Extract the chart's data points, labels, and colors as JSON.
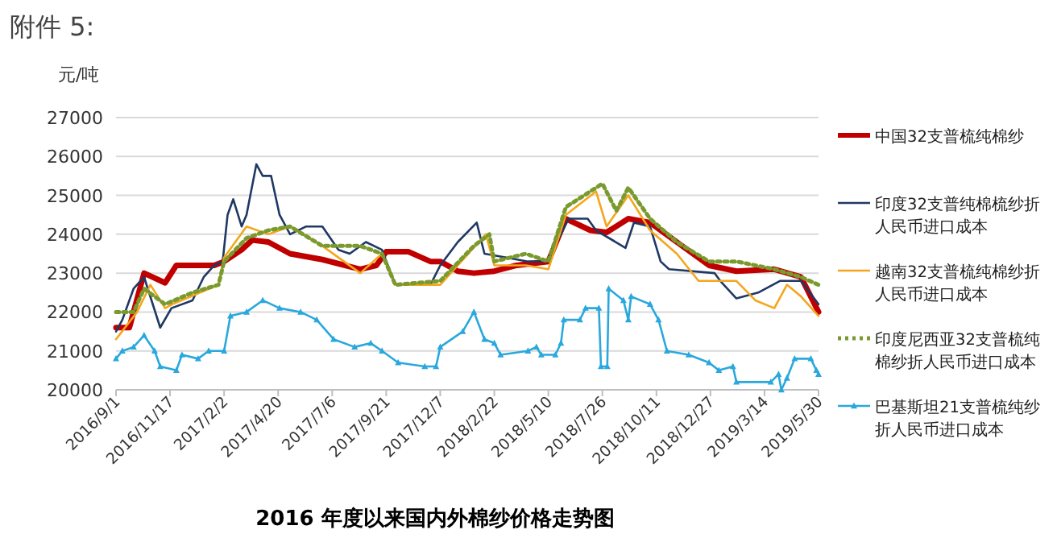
{
  "chart_data": {
    "type": "line",
    "title": "2016 年度以来国内外棉纱价格走势图",
    "ylabel": "元/吨",
    "annotations": [
      "附件 5:"
    ],
    "xlim": [
      "2016-09-01",
      "2019-05-30"
    ],
    "xticks": [
      {
        "value": "2016-09-01",
        "label": "2016/9/1"
      },
      {
        "value": "2016-11-17",
        "label": "2016/11/17"
      },
      {
        "value": "2017-02-02",
        "label": "2017/2/2"
      },
      {
        "value": "2017-04-20",
        "label": "2017/4/20"
      },
      {
        "value": "2017-07-06",
        "label": "2017/7/6"
      },
      {
        "value": "2017-09-21",
        "label": "2017/9/21"
      },
      {
        "value": "2017-12-07",
        "label": "2017/12/7"
      },
      {
        "value": "2018-02-22",
        "label": "2018/2/22"
      },
      {
        "value": "2018-05-10",
        "label": "2018/5/10"
      },
      {
        "value": "2018-07-26",
        "label": "2018/7/26"
      },
      {
        "value": "2018-10-11",
        "label": "2018/10/11"
      },
      {
        "value": "2018-12-27",
        "label": "2018/12/27"
      },
      {
        "value": "2019-03-14",
        "label": "2019/3/14"
      },
      {
        "value": "2019-05-30",
        "label": "2019/5/30"
      }
    ],
    "ylim": [
      20000,
      27000
    ],
    "yticks": [
      20000,
      21000,
      22000,
      23000,
      24000,
      25000,
      26000,
      27000
    ],
    "grid": "y",
    "legend": "right",
    "series": [
      {
        "name": "中国32支普梳纯棉纱",
        "color": "#c00000",
        "line_style": "solid",
        "marker": "none",
        "x": [
          "2016-09-01",
          "2016-09-20",
          "2016-10-11",
          "2016-11-10",
          "2016-11-26",
          "2017-01-19",
          "2017-02-02",
          "2017-02-27",
          "2017-03-14",
          "2017-04-06",
          "2017-05-07",
          "2017-06-22",
          "2017-08-15",
          "2017-09-07",
          "2017-09-21",
          "2017-10-23",
          "2017-11-23",
          "2017-12-07",
          "2018-01-01",
          "2018-01-24",
          "2018-02-22",
          "2018-03-26",
          "2018-05-10",
          "2018-06-04",
          "2018-07-09",
          "2018-08-01",
          "2018-09-01",
          "2018-10-02",
          "2018-11-09",
          "2018-12-25",
          "2019-02-02",
          "2019-03-28",
          "2019-05-05",
          "2019-05-30"
        ],
        "values": [
          21600,
          21600,
          23000,
          22750,
          23200,
          23200,
          23300,
          23600,
          23850,
          23800,
          23500,
          23350,
          23100,
          23200,
          23550,
          23550,
          23300,
          23300,
          23050,
          23000,
          23050,
          23200,
          23300,
          24400,
          24100,
          24050,
          24400,
          24300,
          23800,
          23200,
          23050,
          23100,
          22900,
          22000
        ]
      },
      {
        "name": "印度32支普纯棉梳纱折人民币进口成本",
        "color": "#1f3864",
        "line_style": "solid",
        "marker": "none",
        "x": [
          "2016-09-01",
          "2016-09-10",
          "2016-09-26",
          "2016-10-11",
          "2016-11-03",
          "2016-11-19",
          "2016-12-19",
          "2017-01-04",
          "2017-01-19",
          "2017-01-31",
          "2017-02-07",
          "2017-02-15",
          "2017-02-27",
          "2017-03-06",
          "2017-03-20",
          "2017-03-29",
          "2017-04-10",
          "2017-04-22",
          "2017-05-07",
          "2017-05-30",
          "2017-06-22",
          "2017-07-15",
          "2017-07-31",
          "2017-08-23",
          "2017-09-15",
          "2017-10-04",
          "2017-11-23",
          "2017-12-07",
          "2018-01-01",
          "2018-01-28",
          "2018-02-08",
          "2018-03-11",
          "2018-04-11",
          "2018-05-08",
          "2018-06-08",
          "2018-07-05",
          "2018-07-17",
          "2018-08-28",
          "2018-09-09",
          "2018-10-02",
          "2018-10-17",
          "2018-10-29",
          "2019-01-02",
          "2019-01-10",
          "2019-02-02",
          "2019-03-05",
          "2019-04-05",
          "2019-05-05",
          "2019-05-30"
        ],
        "values": [
          21500,
          21800,
          22600,
          22900,
          21600,
          22100,
          22300,
          22900,
          23200,
          23300,
          24500,
          24900,
          24200,
          24500,
          25800,
          25500,
          25500,
          24500,
          24000,
          24200,
          24200,
          23600,
          23500,
          23800,
          23600,
          22700,
          22700,
          23200,
          23800,
          24300,
          23500,
          23400,
          23300,
          23300,
          24400,
          24400,
          24100,
          23650,
          24300,
          24200,
          23300,
          23100,
          23000,
          22800,
          22350,
          22500,
          22800,
          22800,
          22200
        ]
      },
      {
        "name": "越南32支普梳纯棉纱折人民币进口成本",
        "color": "#f4a61c",
        "line_style": "solid",
        "marker": "none",
        "x": [
          "2016-09-01",
          "2016-10-01",
          "2016-10-20",
          "2016-11-10",
          "2016-11-20",
          "2017-01-25",
          "2017-02-02",
          "2017-03-06",
          "2017-04-06",
          "2017-05-07",
          "2017-06-22",
          "2017-08-15",
          "2017-09-15",
          "2017-10-04",
          "2017-12-07",
          "2018-01-01",
          "2018-02-10",
          "2018-02-22",
          "2018-04-08",
          "2018-05-10",
          "2018-06-04",
          "2018-07-17",
          "2018-08-01",
          "2018-09-01",
          "2018-10-02",
          "2018-11-09",
          "2018-12-10",
          "2019-02-02",
          "2019-03-01",
          "2019-03-28",
          "2019-04-15",
          "2019-05-05",
          "2019-05-30"
        ],
        "values": [
          21300,
          22000,
          22700,
          22100,
          22200,
          22700,
          23400,
          24200,
          24000,
          24200,
          23700,
          23000,
          23500,
          22700,
          22700,
          23200,
          24000,
          23200,
          23200,
          23100,
          24500,
          25100,
          24200,
          25000,
          24100,
          23500,
          22800,
          22800,
          22300,
          22100,
          22700,
          22400,
          21900
        ]
      },
      {
        "name": "印度尼西亚32支普梳纯棉纱折人民币进口成本",
        "color": "#7a9a2e",
        "line_style": "dotted",
        "marker": "none",
        "x": [
          "2016-09-01",
          "2016-09-26",
          "2016-10-11",
          "2016-11-10",
          "2016-12-19",
          "2017-01-25",
          "2017-02-02",
          "2017-03-06",
          "2017-04-06",
          "2017-05-07",
          "2017-06-22",
          "2017-08-15",
          "2017-09-15",
          "2017-10-04",
          "2017-12-07",
          "2018-01-24",
          "2018-02-15",
          "2018-02-22",
          "2018-04-08",
          "2018-05-10",
          "2018-06-04",
          "2018-07-26",
          "2018-08-15",
          "2018-09-01",
          "2018-10-02",
          "2018-11-09",
          "2018-12-25",
          "2019-02-02",
          "2019-03-28",
          "2019-05-05",
          "2019-05-30"
        ],
        "values": [
          22000,
          22000,
          22600,
          22200,
          22500,
          22700,
          23300,
          23900,
          24100,
          24200,
          23700,
          23700,
          23500,
          22700,
          22800,
          23700,
          24000,
          23300,
          23500,
          23300,
          24700,
          25300,
          24600,
          25200,
          24400,
          23800,
          23300,
          23300,
          23100,
          22900,
          22700
        ]
      },
      {
        "name": "巴基斯坦21支普梳纯纱折人民币进口成本",
        "color": "#29a8dd",
        "line_style": "solid",
        "marker": "triangle",
        "x": [
          "2016-09-01",
          "2016-09-10",
          "2016-09-26",
          "2016-10-11",
          "2016-10-26",
          "2016-11-03",
          "2016-11-26",
          "2016-12-04",
          "2016-12-27",
          "2017-01-11",
          "2017-02-02",
          "2017-02-11",
          "2017-03-06",
          "2017-03-29",
          "2017-04-22",
          "2017-05-22",
          "2017-06-14",
          "2017-07-08",
          "2017-08-07",
          "2017-08-30",
          "2017-09-15",
          "2017-10-08",
          "2017-11-15",
          "2017-12-01",
          "2017-12-07",
          "2018-01-08",
          "2018-01-24",
          "2018-02-08",
          "2018-02-22",
          "2018-03-03",
          "2018-04-11",
          "2018-04-23",
          "2018-04-30",
          "2018-05-20",
          "2018-05-28",
          "2018-06-01",
          "2018-06-24",
          "2018-07-02",
          "2018-07-21",
          "2018-07-24",
          "2018-08-02",
          "2018-08-04",
          "2018-08-25",
          "2018-09-01",
          "2018-09-05",
          "2018-10-02",
          "2018-10-14",
          "2018-10-26",
          "2018-11-26",
          "2018-12-25",
          "2019-01-08",
          "2019-01-28",
          "2019-02-02",
          "2019-03-23",
          "2019-04-03",
          "2019-04-07",
          "2019-04-15",
          "2019-04-26",
          "2019-05-19",
          "2019-05-27",
          "2019-05-30"
        ],
        "values": [
          20800,
          21000,
          21100,
          21400,
          21000,
          20600,
          20500,
          20900,
          20800,
          21000,
          21000,
          21900,
          22000,
          22300,
          22100,
          22000,
          21800,
          21300,
          21100,
          21200,
          21000,
          20700,
          20600,
          20600,
          21100,
          21500,
          22000,
          21300,
          21200,
          20900,
          21000,
          21100,
          20900,
          20900,
          21200,
          21800,
          21800,
          22100,
          22100,
          20600,
          20600,
          22600,
          22300,
          21800,
          22400,
          22200,
          21800,
          21000,
          20900,
          20700,
          20500,
          20600,
          20200,
          20200,
          20400,
          20000,
          20300,
          20800,
          20800,
          20500,
          20400
        ]
      }
    ]
  }
}
